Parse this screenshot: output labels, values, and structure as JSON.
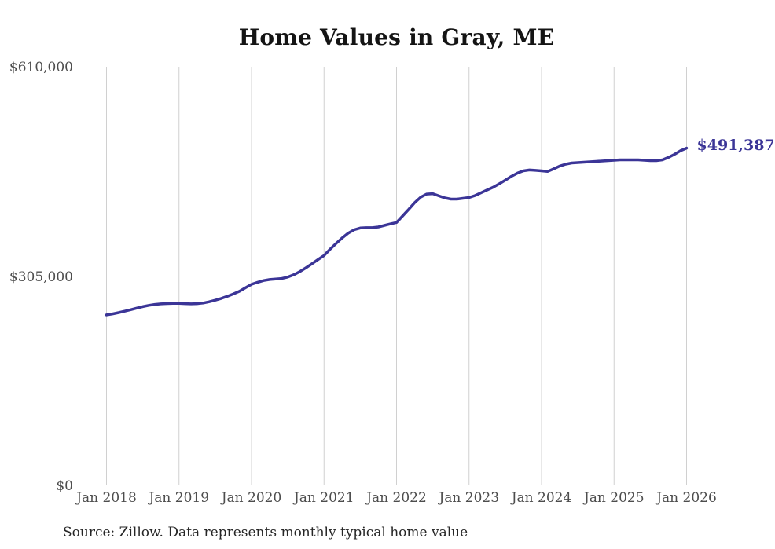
{
  "title": "Home Values in Gray, ME",
  "source_note": "Source: Zillow. Data represents monthly typical home value",
  "colors": {
    "line": "#3b3597",
    "end_label": "#3b3597",
    "grid": "#d0d0d0",
    "axis_text": "#4d4d4d",
    "title_text": "#141414",
    "source_text": "#262626",
    "background": "#ffffff"
  },
  "chart_data": {
    "type": "line",
    "title": "Home Values in Gray, ME",
    "xlabel": "",
    "ylabel": "",
    "ylim": [
      0,
      610000
    ],
    "y_ticks": [
      0,
      305000,
      610000
    ],
    "y_tick_labels": [
      "$0",
      "$305,000",
      "$610,000"
    ],
    "x_tick_labels": [
      "Jan 2018",
      "Jan 2019",
      "Jan 2020",
      "Jan 2021",
      "Jan 2022",
      "Jan 2023",
      "Jan 2024",
      "Jan 2025",
      "Jan 2026"
    ],
    "grid": "vertical-only",
    "legend": "none",
    "final_value": 491387,
    "final_value_label": "$491,387",
    "series": [
      {
        "name": "Monthly typical home value",
        "months": [
          "2018-01",
          "2018-02",
          "2018-03",
          "2018-04",
          "2018-05",
          "2018-06",
          "2018-07",
          "2018-08",
          "2018-09",
          "2018-10",
          "2018-11",
          "2018-12",
          "2019-01",
          "2019-02",
          "2019-03",
          "2019-04",
          "2019-05",
          "2019-06",
          "2019-07",
          "2019-08",
          "2019-09",
          "2019-10",
          "2019-11",
          "2019-12",
          "2020-01",
          "2020-02",
          "2020-03",
          "2020-04",
          "2020-05",
          "2020-06",
          "2020-07",
          "2020-08",
          "2020-09",
          "2020-10",
          "2020-11",
          "2020-12",
          "2021-01",
          "2021-02",
          "2021-03",
          "2021-04",
          "2021-05",
          "2021-06",
          "2021-07",
          "2021-08",
          "2021-09",
          "2021-10",
          "2021-11",
          "2021-12",
          "2022-01",
          "2022-02",
          "2022-03",
          "2022-04",
          "2022-05",
          "2022-06",
          "2022-07",
          "2022-08",
          "2022-09",
          "2022-10",
          "2022-11",
          "2022-12",
          "2023-01",
          "2023-02",
          "2023-03",
          "2023-04",
          "2023-05",
          "2023-06",
          "2023-07",
          "2023-08",
          "2023-09",
          "2023-10",
          "2023-11",
          "2023-12",
          "2024-01",
          "2024-02",
          "2024-03",
          "2024-04",
          "2024-05",
          "2024-06",
          "2024-07",
          "2024-08",
          "2024-09",
          "2024-10",
          "2024-11",
          "2024-12",
          "2025-01",
          "2025-02",
          "2025-03",
          "2025-04",
          "2025-05",
          "2025-06",
          "2025-07",
          "2025-08",
          "2025-09",
          "2025-10",
          "2025-11",
          "2025-12",
          "2026-01"
        ],
        "values": [
          248500,
          250000,
          251800,
          253800,
          256000,
          258300,
          260500,
          262300,
          263700,
          264500,
          265000,
          265300,
          265200,
          264800,
          264500,
          264800,
          265800,
          267600,
          269900,
          272500,
          275600,
          279000,
          282800,
          288000,
          293000,
          296000,
          298500,
          300000,
          300800,
          301500,
          303500,
          307000,
          311500,
          317000,
          323000,
          329000,
          335000,
          344000,
          352500,
          360500,
          367500,
          372500,
          375000,
          375500,
          375500,
          376500,
          378800,
          381000,
          383000,
          392500,
          402000,
          412000,
          420000,
          424500,
          425000,
          421800,
          418900,
          417200,
          417200,
          418300,
          419500,
          422300,
          426400,
          430400,
          434400,
          439500,
          444700,
          450400,
          455000,
          458400,
          459600,
          459000,
          458400,
          457500,
          461200,
          465300,
          468100,
          469800,
          470400,
          471000,
          471500,
          472100,
          472700,
          473200,
          473800,
          474400,
          474400,
          474400,
          474400,
          473800,
          473200,
          473200,
          474400,
          477900,
          482400,
          487600,
          491387
        ]
      }
    ]
  }
}
